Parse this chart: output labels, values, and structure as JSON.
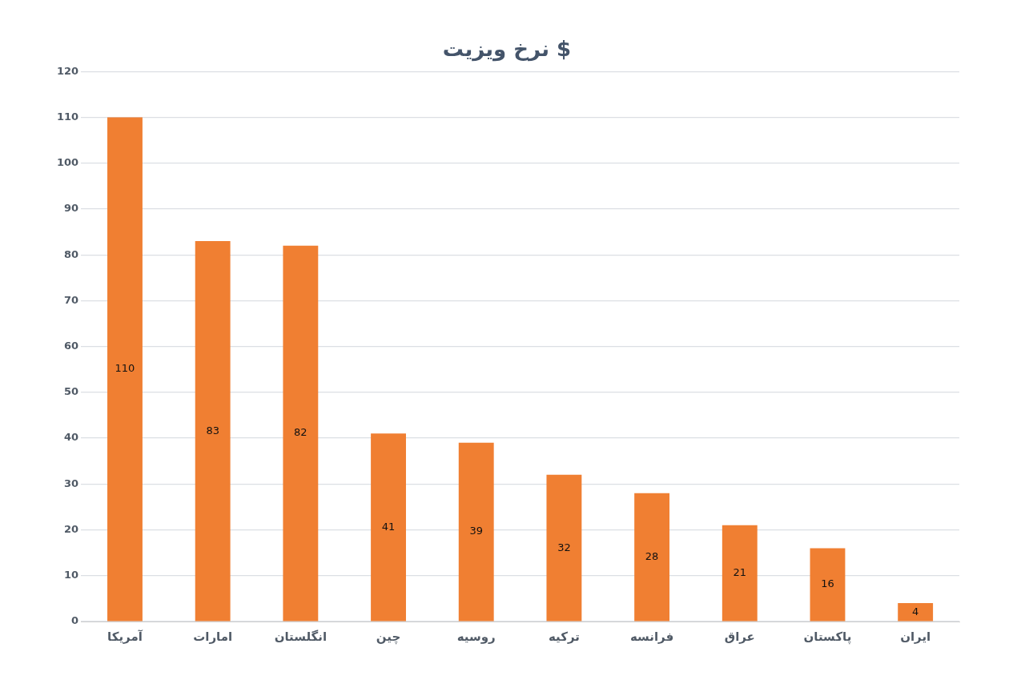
{
  "chart_data": {
    "type": "bar",
    "title": "نرخ ویزیت $",
    "categories": [
      "آمریکا",
      "امارات",
      "انگلستان",
      "چین",
      "روسیه",
      "ترکیه",
      "فرانسه",
      "عراق",
      "پاکستان",
      "ایران"
    ],
    "values": [
      110,
      83,
      82,
      41,
      39,
      32,
      28,
      21,
      16,
      4
    ],
    "color": "#f07f32",
    "ylim": [
      0,
      120
    ],
    "yticks": [
      0,
      10,
      20,
      30,
      40,
      50,
      60,
      70,
      80,
      90,
      100,
      110,
      120
    ],
    "grid": "y",
    "data_labels": true,
    "legend": false
  }
}
